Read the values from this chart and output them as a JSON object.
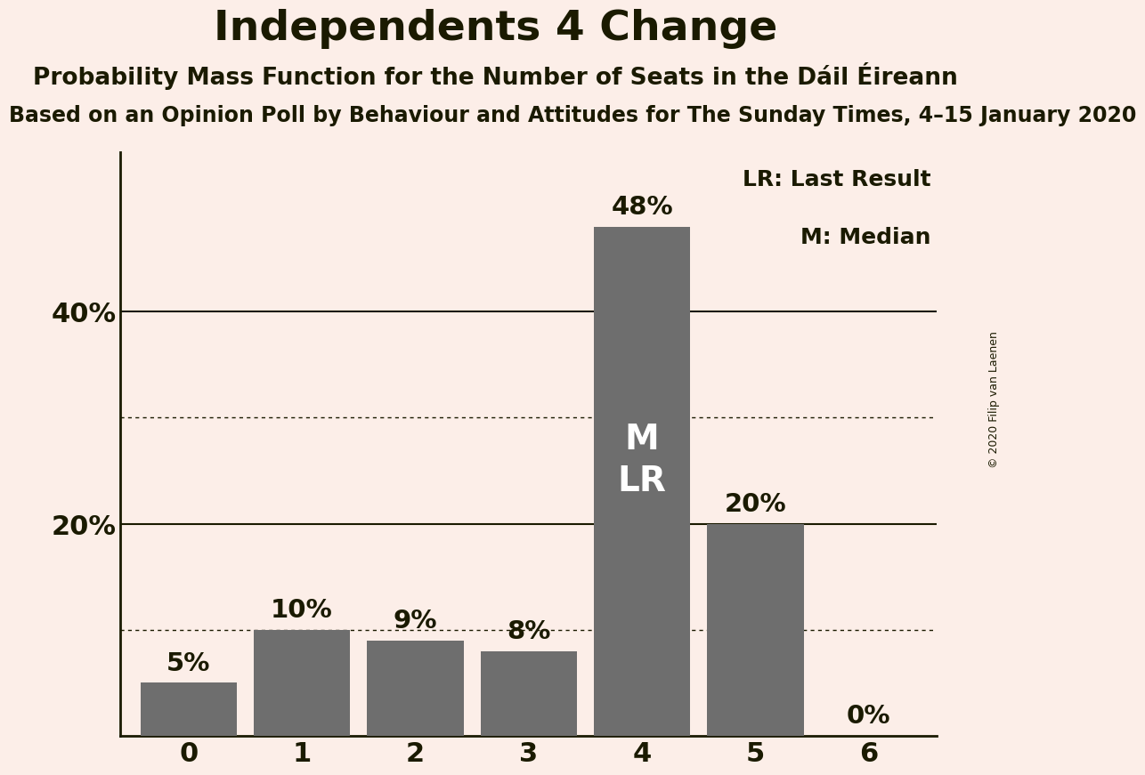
{
  "title": "Independents 4 Change",
  "subtitle": "Probability Mass Function for the Number of Seats in the Dáil Éireann",
  "subsubtitle": "Based on an Opinion Poll by Behaviour and Attitudes for The Sunday Times, 4–15 January 2020",
  "copyright": "© 2020 Filip van Laenen",
  "categories": [
    0,
    1,
    2,
    3,
    4,
    5,
    6
  ],
  "values": [
    5,
    10,
    9,
    8,
    48,
    20,
    0
  ],
  "bar_color": "#6e6e6e",
  "background_color": "#fceee8",
  "title_color": "#1a1a00",
  "text_color": "#1a1a00",
  "bar_label_color_dark": "#1a1a00",
  "bar_label_color_light": "#ffffff",
  "median_bar_index": 4,
  "ylim": [
    0,
    55
  ],
  "yticks": [
    20,
    40
  ],
  "dotted_lines": [
    10,
    30
  ],
  "solid_lines": [
    20,
    40
  ],
  "legend_lr": "LR: Last Result",
  "legend_m": "M: Median",
  "title_fontsize": 34,
  "subtitle_fontsize": 19,
  "subsubtitle_fontsize": 17,
  "bar_label_fontsize": 21,
  "axis_label_fontsize": 22,
  "legend_fontsize": 18,
  "inside_label_fontsize": 28,
  "copyright_fontsize": 9
}
